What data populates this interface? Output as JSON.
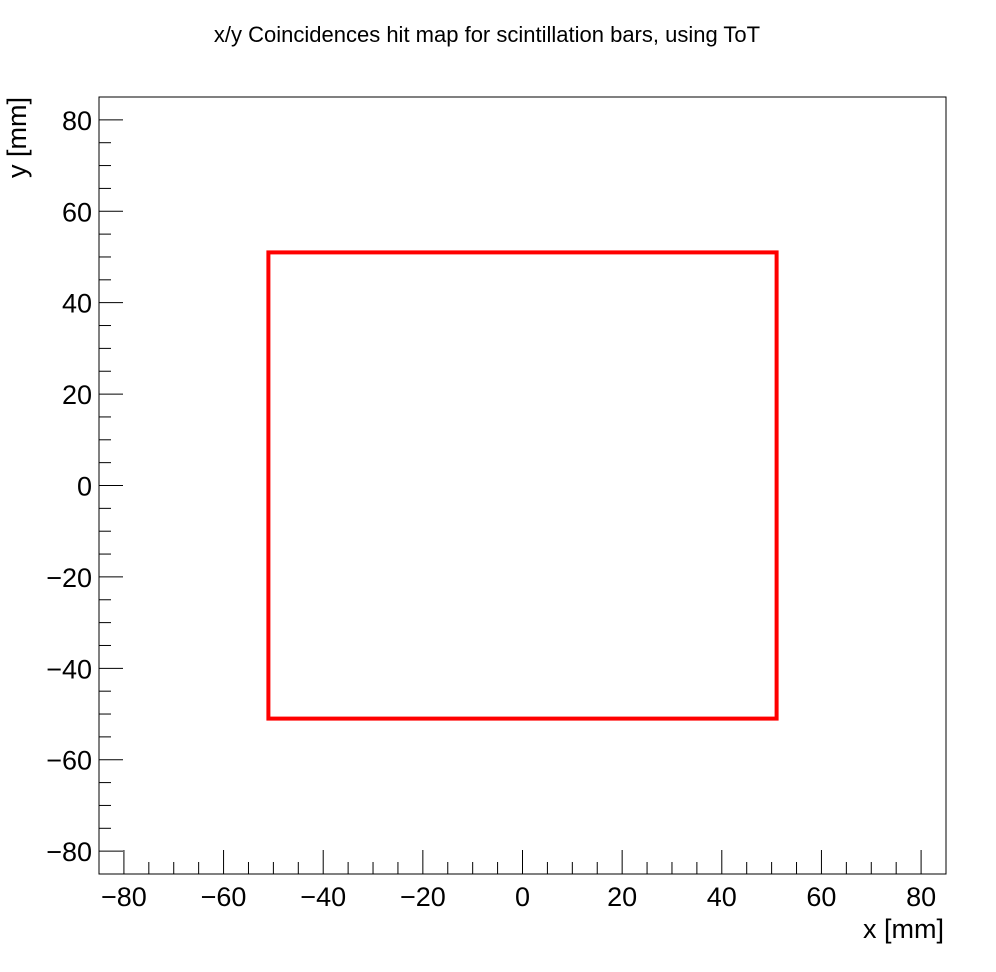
{
  "chart_data": {
    "type": "scatter",
    "title": "x/y Coincidences hit map for scintillation bars, using ToT",
    "xlabel": "x [mm]",
    "ylabel": "y [mm]",
    "xlim": [
      -85,
      85
    ],
    "ylim": [
      -85,
      85
    ],
    "grid": false,
    "x_ticks": [
      -80,
      -60,
      -40,
      -20,
      0,
      20,
      40,
      60,
      80
    ],
    "y_ticks": [
      -80,
      -60,
      -40,
      -20,
      0,
      20,
      40,
      60,
      80
    ],
    "x_tick_labels": [
      "−80",
      "−60",
      "−40",
      "−20",
      "0",
      "20",
      "40",
      "60",
      "80"
    ],
    "y_tick_labels": [
      "−80",
      "−60",
      "−40",
      "−20",
      "0",
      "20",
      "40",
      "60",
      "80"
    ],
    "boxes": [
      {
        "x": [
          -51,
          51
        ],
        "y": [
          -51,
          51
        ],
        "color": "#ff0000"
      }
    ]
  }
}
